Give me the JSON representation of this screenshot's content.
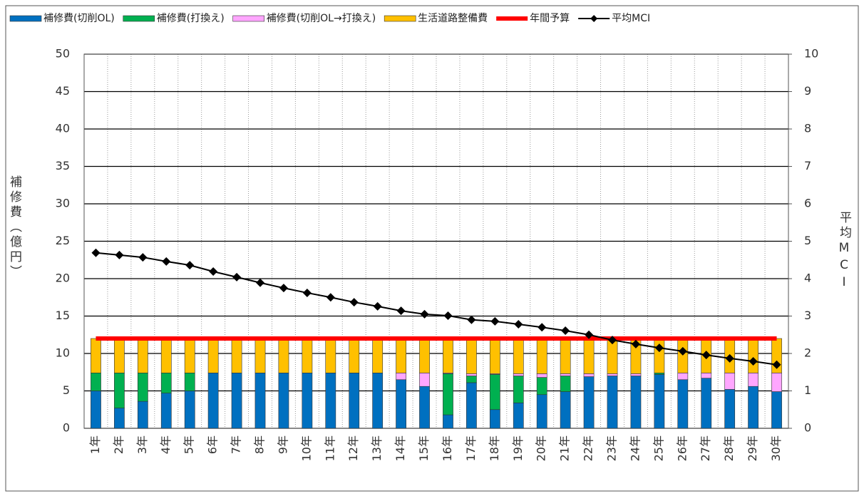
{
  "chart_data": {
    "type": "bar",
    "stacked": true,
    "y_label": "補修費（億円）",
    "y2_label": "平均MCI",
    "categories": [
      "1年",
      "2年",
      "3年",
      "4年",
      "5年",
      "6年",
      "7年",
      "8年",
      "9年",
      "10年",
      "11年",
      "12年",
      "13年",
      "14年",
      "15年",
      "16年",
      "17年",
      "18年",
      "19年",
      "20年",
      "21年",
      "22年",
      "23年",
      "24年",
      "25年",
      "26年",
      "27年",
      "28年",
      "29年",
      "30年"
    ],
    "series": [
      {
        "name": "補修費(切削OL)",
        "color": "#0070c0",
        "values": [
          5.0,
          2.7,
          3.6,
          4.7,
          5.0,
          7.4,
          7.4,
          7.4,
          7.4,
          7.4,
          7.4,
          7.4,
          7.4,
          6.5,
          5.6,
          1.8,
          6.1,
          2.5,
          3.4,
          4.5,
          4.9,
          6.9,
          7.0,
          7.0,
          7.2,
          6.5,
          6.7,
          5.2,
          5.6,
          4.9
        ]
      },
      {
        "name": "補修費(打換え)",
        "color": "#00b050",
        "values": [
          2.4,
          4.7,
          3.8,
          2.7,
          2.4,
          0,
          0,
          0,
          0,
          0,
          0,
          0,
          0,
          0,
          0,
          5.5,
          0.9,
          4.7,
          3.6,
          2.3,
          2.1,
          0,
          0,
          0,
          0.2,
          0,
          0,
          0,
          0,
          0
        ]
      },
      {
        "name": "補修費(切削OL→打換え)",
        "color": "#ffa6ff",
        "values": [
          0,
          0,
          0,
          0,
          0,
          0,
          0,
          0,
          0,
          0,
          0,
          0,
          0,
          0.9,
          1.8,
          0.1,
          0.3,
          0.1,
          0.3,
          0.5,
          0.3,
          0.4,
          0.3,
          0.3,
          0,
          0.9,
          0.7,
          2.2,
          1.8,
          2.5
        ]
      },
      {
        "name": "生活道路整備費",
        "color": "#ffc000",
        "values": [
          4.6,
          4.6,
          4.6,
          4.6,
          4.6,
          4.6,
          4.6,
          4.6,
          4.6,
          4.6,
          4.6,
          4.6,
          4.6,
          4.6,
          4.6,
          4.6,
          4.7,
          4.7,
          4.7,
          4.7,
          4.7,
          4.7,
          4.7,
          4.7,
          4.6,
          4.6,
          4.6,
          4.6,
          4.6,
          4.6
        ]
      },
      {
        "name": "年間予算",
        "type": "line",
        "color": "#ff0000",
        "values": [
          12,
          12,
          12,
          12,
          12,
          12,
          12,
          12,
          12,
          12,
          12,
          12,
          12,
          12,
          12,
          12,
          12,
          12,
          12,
          12,
          12,
          12,
          12,
          12,
          12,
          12,
          12,
          12,
          12,
          12
        ]
      },
      {
        "name": "平均MCI",
        "type": "line",
        "marker": "diamond",
        "axis": "y2",
        "color": "#000000",
        "values": [
          4.69,
          4.63,
          4.57,
          4.46,
          4.36,
          4.19,
          4.04,
          3.89,
          3.75,
          3.62,
          3.5,
          3.37,
          3.26,
          3.14,
          3.05,
          3.01,
          2.9,
          2.86,
          2.78,
          2.7,
          2.61,
          2.5,
          2.36,
          2.25,
          2.15,
          2.06,
          1.96,
          1.87,
          1.79,
          1.7
        ]
      }
    ],
    "ylim": [
      0,
      50
    ],
    "yticks": [
      0,
      5,
      10,
      15,
      20,
      25,
      30,
      35,
      40,
      45,
      50
    ],
    "y2lim": [
      0,
      10
    ],
    "y2ticks": [
      0,
      1,
      2,
      3,
      4,
      5,
      6,
      7,
      8,
      9,
      10
    ],
    "grid": true,
    "legend": "top"
  }
}
